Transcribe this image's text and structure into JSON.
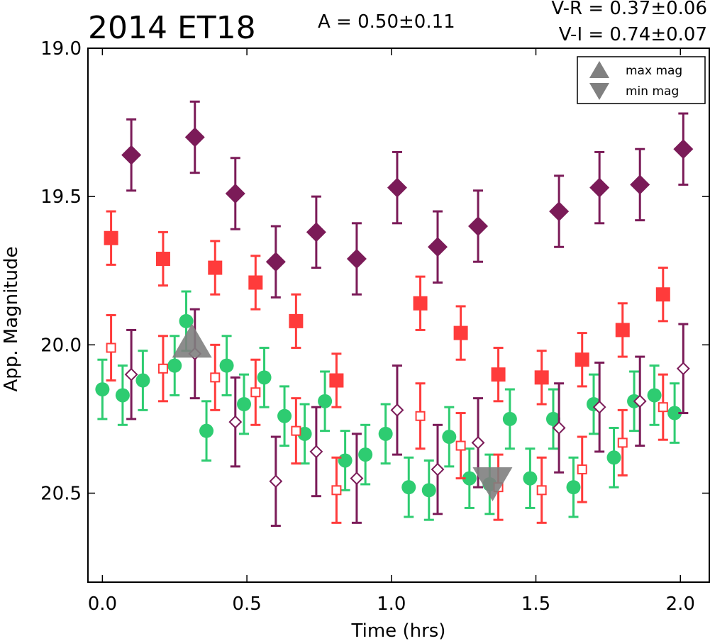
{
  "header": {
    "title": "2014 ET18",
    "amplitude": "A  = 0.50±0.11",
    "vr": "V-R = 0.37±0.06",
    "vi": "V-I  = 0.74±0.07"
  },
  "chart_data": {
    "type": "scatter",
    "title": "2014 ET18",
    "xlabel": "Time (hrs)",
    "ylabel": "App. Magnitude",
    "xlim": [
      -0.05,
      2.1
    ],
    "ylim": [
      20.8,
      19.0
    ],
    "y_inverted": true,
    "grid": false,
    "x_ticks": [
      0.0,
      0.5,
      1.0,
      1.5,
      2.0
    ],
    "x_tick_labels": [
      "0.0",
      "0.5",
      "1.0",
      "1.5",
      "2.0"
    ],
    "y_ticks": [
      19.0,
      19.5,
      20.0,
      20.5
    ],
    "y_tick_labels": [
      "19.0",
      "19.5",
      "20.0",
      "20.5"
    ],
    "legend": {
      "placement": "top-right",
      "entries": [
        {
          "label": "max mag",
          "marker": "triangle-up",
          "color": "#808080"
        },
        {
          "label": "min mag",
          "marker": "triangle-down",
          "color": "#808080"
        }
      ]
    },
    "series": [
      {
        "band": "V",
        "marker": "circle",
        "filled": true,
        "color": "#2ecc71",
        "err": 0.1,
        "x": [
          0.0,
          0.07,
          0.14,
          0.25,
          0.29,
          0.36,
          0.43,
          0.49,
          0.56,
          0.63,
          0.7,
          0.77,
          0.84,
          0.91,
          0.98,
          1.06,
          1.13,
          1.2,
          1.27,
          1.34,
          1.41,
          1.48,
          1.56,
          1.63,
          1.7,
          1.77,
          1.84,
          1.91,
          1.98
        ],
        "y": [
          20.15,
          20.17,
          20.12,
          20.07,
          19.92,
          20.29,
          20.07,
          20.2,
          20.11,
          20.24,
          20.3,
          20.19,
          20.39,
          20.37,
          20.3,
          20.48,
          20.49,
          20.31,
          20.45,
          20.47,
          20.25,
          20.45,
          20.25,
          20.48,
          20.2,
          20.38,
          20.19,
          20.17,
          20.23
        ]
      },
      {
        "band": "R",
        "marker": "square",
        "filled": true,
        "color": "#ff3b3b",
        "err": 0.09,
        "x": [
          0.03,
          0.21,
          0.39,
          0.53,
          0.67,
          0.81,
          1.1,
          1.24,
          1.37,
          1.52,
          1.66,
          1.8,
          1.94
        ],
        "y": [
          19.64,
          19.71,
          19.74,
          19.79,
          19.92,
          20.12,
          19.86,
          19.96,
          20.1,
          20.11,
          20.05,
          19.95,
          19.83
        ]
      },
      {
        "band": "I",
        "marker": "diamond",
        "filled": true,
        "color": "#7b1b58",
        "err": 0.12,
        "x": [
          0.1,
          0.32,
          0.46,
          0.6,
          0.74,
          0.88,
          1.02,
          1.16,
          1.3,
          1.58,
          1.72,
          1.86,
          2.01
        ],
        "y": [
          19.36,
          19.3,
          19.49,
          19.72,
          19.62,
          19.71,
          19.47,
          19.67,
          19.6,
          19.55,
          19.47,
          19.46,
          19.34
        ]
      },
      {
        "band": "R",
        "marker": "square",
        "filled": false,
        "color": "#ff3b3b",
        "err": 0.11,
        "x": [
          0.03,
          0.21,
          0.39,
          0.53,
          0.67,
          0.81,
          1.1,
          1.24,
          1.37,
          1.52,
          1.66,
          1.8,
          1.94
        ],
        "y": [
          20.01,
          20.08,
          20.11,
          20.16,
          20.29,
          20.49,
          20.24,
          20.34,
          20.48,
          20.49,
          20.42,
          20.33,
          20.21
        ]
      },
      {
        "band": "I",
        "marker": "diamond",
        "filled": false,
        "color": "#7b1b58",
        "err": 0.15,
        "x": [
          0.1,
          0.32,
          0.46,
          0.6,
          0.74,
          0.88,
          1.02,
          1.16,
          1.3,
          1.58,
          1.72,
          1.86,
          2.01
        ],
        "y": [
          20.1,
          20.03,
          20.26,
          20.46,
          20.36,
          20.45,
          20.22,
          20.42,
          20.33,
          20.28,
          20.21,
          20.19,
          20.08
        ]
      }
    ],
    "extrema": [
      {
        "label": "max mag",
        "marker": "triangle-up",
        "color": "#808080",
        "x": 0.31,
        "y": 20.0
      },
      {
        "label": "min mag",
        "marker": "triangle-down",
        "color": "#808080",
        "x": 1.35,
        "y": 20.47
      }
    ]
  }
}
